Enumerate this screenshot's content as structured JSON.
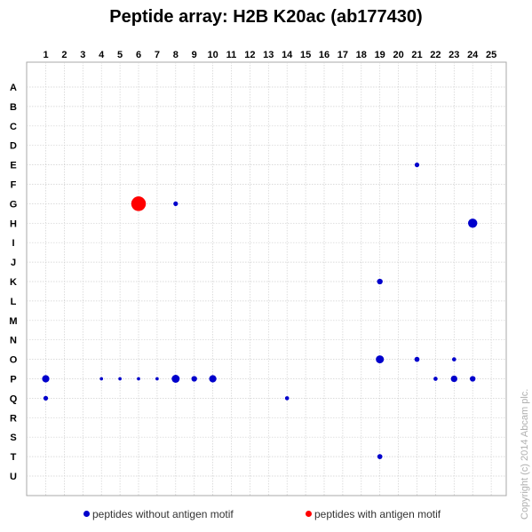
{
  "title": "Peptide array: H2B K20ac (ab177430)",
  "copyright": "Copyright (c) 2014 Abcam plc.",
  "legend": {
    "without_label": "peptides without antigen motif",
    "without_color": "#0000cc",
    "with_label": "peptides with antigen motif",
    "with_color": "#ff0000"
  },
  "chart_data": {
    "type": "scatter",
    "columns": [
      "1",
      "2",
      "3",
      "4",
      "5",
      "6",
      "7",
      "8",
      "9",
      "10",
      "11",
      "12",
      "13",
      "14",
      "15",
      "16",
      "17",
      "18",
      "19",
      "20",
      "21",
      "22",
      "23",
      "24",
      "25"
    ],
    "rows": [
      "A",
      "B",
      "C",
      "D",
      "E",
      "F",
      "G",
      "H",
      "I",
      "J",
      "K",
      "L",
      "M",
      "N",
      "O",
      "P",
      "Q",
      "R",
      "S",
      "T",
      "U"
    ],
    "grid": true,
    "legend_position": "bottom",
    "points": [
      {
        "col": 21,
        "row": "E",
        "intensity": 1,
        "antigen": false
      },
      {
        "col": 6,
        "row": "G",
        "intensity": 10,
        "antigen": true
      },
      {
        "col": 8,
        "row": "G",
        "intensity": 1,
        "antigen": false
      },
      {
        "col": 24,
        "row": "H",
        "intensity": 4,
        "antigen": false
      },
      {
        "col": 19,
        "row": "K",
        "intensity": 1.5,
        "antigen": false
      },
      {
        "col": 19,
        "row": "O",
        "intensity": 3,
        "antigen": false
      },
      {
        "col": 21,
        "row": "O",
        "intensity": 1.2,
        "antigen": false
      },
      {
        "col": 23,
        "row": "O",
        "intensity": 0.8,
        "antigen": false
      },
      {
        "col": 1,
        "row": "P",
        "intensity": 2.5,
        "antigen": false
      },
      {
        "col": 4,
        "row": "P",
        "intensity": 0.5,
        "antigen": false
      },
      {
        "col": 5,
        "row": "P",
        "intensity": 0.5,
        "antigen": false
      },
      {
        "col": 6,
        "row": "P",
        "intensity": 0.5,
        "antigen": false
      },
      {
        "col": 7,
        "row": "P",
        "intensity": 0.5,
        "antigen": false
      },
      {
        "col": 8,
        "row": "P",
        "intensity": 3,
        "antigen": false
      },
      {
        "col": 9,
        "row": "P",
        "intensity": 1.5,
        "antigen": false
      },
      {
        "col": 10,
        "row": "P",
        "intensity": 2.5,
        "antigen": false
      },
      {
        "col": 22,
        "row": "P",
        "intensity": 0.8,
        "antigen": false
      },
      {
        "col": 23,
        "row": "P",
        "intensity": 2,
        "antigen": false
      },
      {
        "col": 24,
        "row": "P",
        "intensity": 1.5,
        "antigen": false
      },
      {
        "col": 1,
        "row": "Q",
        "intensity": 1,
        "antigen": false
      },
      {
        "col": 14,
        "row": "Q",
        "intensity": 0.8,
        "antigen": false
      },
      {
        "col": 19,
        "row": "T",
        "intensity": 1.2,
        "antigen": false
      }
    ]
  }
}
